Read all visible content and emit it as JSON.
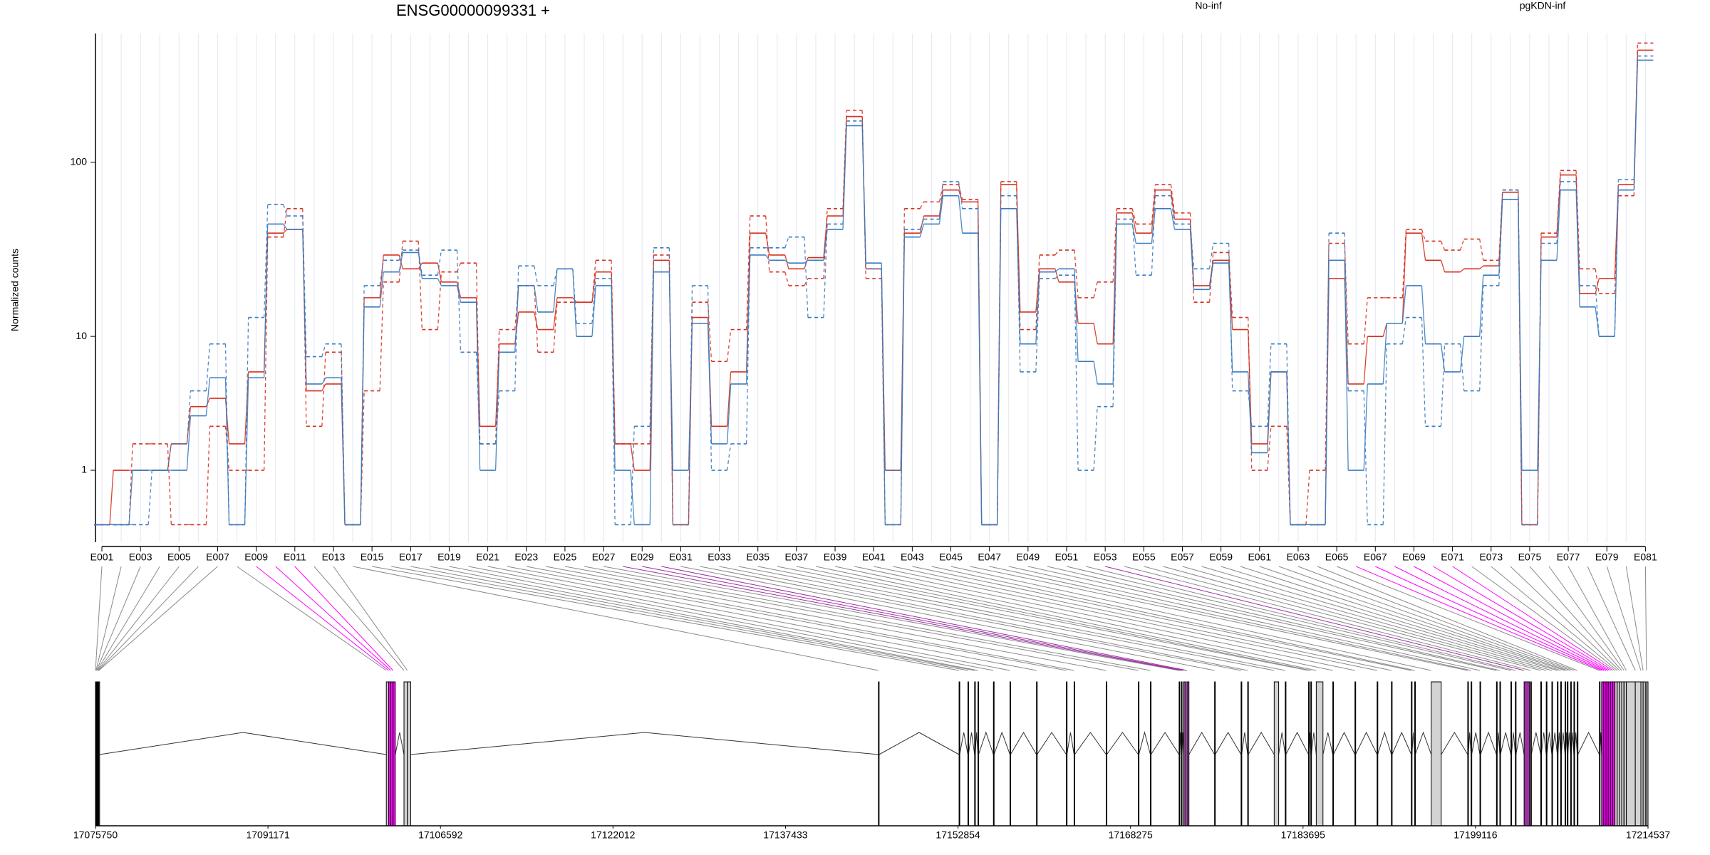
{
  "chart_data": {
    "type": "line",
    "title": "ENSG00000099331 +",
    "y_label": "Normalized counts",
    "yscale": "log1p",
    "ylim": [
      -0.2,
      520
    ],
    "yticks": [
      1,
      10,
      100
    ],
    "grid": true,
    "categories": [
      "E001",
      null,
      "E003",
      null,
      "E005",
      null,
      "E007",
      null,
      "E009",
      null,
      "E011",
      null,
      "E013",
      null,
      "E015",
      null,
      "E017",
      null,
      "E019",
      null,
      "E021",
      null,
      "E023",
      null,
      "E025",
      null,
      "E027",
      null,
      "E029",
      null,
      "E031",
      null,
      "E033",
      null,
      "E035",
      null,
      "E037",
      null,
      "E039",
      null,
      "E041",
      null,
      "E043",
      null,
      "E045",
      null,
      "E047",
      null,
      "E049",
      null,
      "E051",
      null,
      "E053",
      null,
      "E055",
      null,
      "E057",
      null,
      "E059",
      null,
      "E061",
      null,
      "E063",
      null,
      "E065",
      null,
      "E067",
      null,
      "E069",
      null,
      "E071",
      null,
      "E073",
      null,
      "E075",
      null,
      "E077",
      null,
      "E079",
      null,
      "E081"
    ],
    "groups": [
      {
        "name": "No-inf",
        "color": "#d7301f",
        "samples": [
          {
            "dash": false,
            "values": [
              0,
              1,
              1,
              1,
              1.8,
              3.5,
              4,
              1.8,
              6,
              40,
              42,
              4.5,
              5,
              0,
              17,
              30,
              25,
              27,
              21,
              17,
              2.5,
              9,
              14,
              11,
              17,
              16,
              24,
              1.8,
              1,
              28,
              0,
              13,
              2.5,
              6,
              40,
              30,
              25,
              29,
              50,
              180,
              25,
              1,
              40,
              50,
              70,
              60,
              0,
              75,
              14,
              25,
              21,
              12,
              9,
              52,
              40,
              70,
              48,
              20,
              28,
              11,
              1.8,
              6,
              0,
              0,
              22,
              5,
              10,
              12,
              40,
              28,
              24,
              25,
              26,
              68,
              0,
              38,
              85,
              18,
              22,
              75,
              420
            ]
          },
          {
            "dash": true,
            "values": [
              0,
              0,
              1.8,
              1.8,
              0,
              0,
              2.5,
              1,
              1,
              38,
              55,
              2.5,
              8,
              0,
              4.5,
              21,
              36,
              11,
              24,
              27,
              1.8,
              11,
              20,
              8,
              16,
              16,
              28,
              1.8,
              1.8,
              30,
              0,
              16,
              7,
              11,
              50,
              24,
              20,
              22,
              55,
              195,
              22,
              0,
              55,
              60,
              75,
              62,
              0,
              78,
              11,
              30,
              32,
              17,
              21,
              55,
              45,
              75,
              52,
              16,
              31,
              13,
              1,
              2.5,
              0,
              1,
              35,
              9,
              17,
              17,
              42,
              36,
              32,
              37,
              28,
              70,
              0,
              40,
              90,
              25,
              18,
              65,
              460
            ]
          }
        ]
      },
      {
        "name": "pgKDN-inf",
        "color": "#3a7bbf",
        "samples": [
          {
            "dash": false,
            "values": [
              0,
              0,
              1,
              1,
              1,
              3,
              5.5,
              0,
              5.5,
              45,
              42,
              5,
              5.5,
              0,
              15,
              24,
              31,
              22,
              20,
              16,
              1,
              8,
              20,
              14,
              25,
              10,
              20,
              1,
              0,
              24,
              1,
              12,
              1.8,
              5,
              30,
              28,
              27,
              28,
              42,
              160,
              27,
              0,
              38,
              45,
              65,
              40,
              0,
              55,
              9,
              24,
              25,
              7,
              5,
              45,
              35,
              55,
              42,
              19,
              27,
              6,
              1.5,
              6,
              0,
              0,
              28,
              1,
              5,
              12,
              20,
              9,
              6,
              10,
              23,
              62,
              1,
              28,
              70,
              15,
              10,
              70,
              370
            ]
          },
          {
            "dash": true,
            "values": [
              0,
              0,
              0,
              1,
              1.8,
              4.5,
              9,
              0,
              13,
              58,
              50,
              7.5,
              9,
              0,
              20,
              28,
              32,
              23,
              32,
              8,
              1.8,
              4.5,
              26,
              20,
              25,
              12,
              22,
              0,
              2.5,
              33,
              0,
              20,
              1,
              1.8,
              33,
              33,
              38,
              13,
              45,
              170,
              25,
              1,
              42,
              48,
              78,
              55,
              0,
              65,
              6,
              22,
              23,
              1,
              3.5,
              48,
              23,
              65,
              45,
              25,
              35,
              4.5,
              2.5,
              9,
              0,
              0,
              40,
              4.5,
              0,
              9,
              13,
              2.5,
              9,
              4.5,
              20,
              70,
              0,
              35,
              78,
              20,
              10,
              80,
              390
            ]
          }
        ]
      }
    ],
    "gene_model": {
      "xlim": [
        17075750,
        17214537
      ],
      "xticks": [
        17075750,
        17091171,
        17106592,
        17122012,
        17137433,
        17152854,
        17168275,
        17183695,
        17199116,
        17214537
      ],
      "exon_starts": [
        17075750,
        17075800,
        17075850,
        17075900,
        17075950,
        17076000,
        17076050,
        17101750,
        17101950,
        17102150,
        17102350,
        17103330,
        17103630,
        17145740,
        17152950,
        17153740,
        17154340,
        17154640,
        17156020,
        17157500,
        17159870,
        17162540,
        17163230,
        17166100,
        17168970,
        17170050,
        17172620,
        17172820,
        17173020,
        17173320,
        17175790,
        17178160,
        17178750,
        17181120,
        17182110,
        17184190,
        17184390,
        17184880,
        17186360,
        17188340,
        17190320,
        17191600,
        17193380,
        17193680,
        17195160,
        17198420,
        17198720,
        17199510,
        17200990,
        17201290,
        17202280,
        17202680,
        17203460,
        17204050,
        17204950,
        17205440,
        17205940,
        17206430,
        17206730,
        17207120,
        17207320,
        17207620,
        17207910,
        17208210,
        17210190,
        17210390,
        17210580,
        17210780,
        17210980,
        17211180,
        17211380,
        17211580,
        17211780,
        17211980,
        17212180,
        17212400,
        17212600,
        17213400,
        17213900,
        17214100,
        17214400
      ],
      "exon_ends": [
        17075790,
        17075840,
        17075890,
        17075940,
        17075990,
        17076040,
        17076120,
        17101950,
        17102150,
        17102350,
        17102550,
        17103630,
        17103930,
        17145800,
        17153000,
        17153790,
        17154390,
        17154690,
        17156070,
        17157550,
        17159920,
        17162590,
        17163280,
        17166150,
        17169020,
        17170100,
        17172680,
        17172880,
        17173200,
        17173500,
        17175840,
        17178210,
        17178800,
        17181520,
        17182160,
        17184240,
        17184440,
        17185480,
        17186410,
        17188390,
        17190370,
        17191650,
        17193430,
        17193730,
        17196050,
        17198470,
        17198770,
        17199560,
        17201040,
        17201340,
        17202330,
        17202730,
        17203950,
        17204100,
        17205000,
        17205490,
        17205990,
        17206480,
        17206780,
        17207170,
        17207370,
        17207670,
        17207960,
        17208260,
        17210240,
        17210580,
        17210780,
        17210980,
        17211180,
        17211380,
        17211580,
        17211780,
        17211980,
        17212180,
        17212380,
        17212600,
        17213400,
        17213900,
        17214100,
        17214300,
        17214537
      ],
      "exon_colors": [
        "#d3d3d3",
        "#d3d3d3",
        "#d3d3d3",
        "#d3d3d3",
        "#d3d3d3",
        "#d3d3d3",
        "#d3d3d3",
        "#d3d3d3",
        "#ff00ff",
        "#ff00ff",
        "#ff00ff",
        "#d3d3d3",
        "#d3d3d3",
        "#d3d3d3",
        "#d3d3d3",
        "#d3d3d3",
        "#d3d3d3",
        "#d3d3d3",
        "#d3d3d3",
        "#d3d3d3",
        "#d3d3d3",
        "#d3d3d3",
        "#d3d3d3",
        "#d3d3d3",
        "#d3d3d3",
        "#d3d3d3",
        "#d3d3d3",
        "#9b30a0",
        "#9b30a0",
        "#9b30a0",
        "#d3d3d3",
        "#d3d3d3",
        "#d3d3d3",
        "#d3d3d3",
        "#d3d3d3",
        "#d3d3d3",
        "#d3d3d3",
        "#d3d3d3",
        "#d3d3d3",
        "#d3d3d3",
        "#d3d3d3",
        "#d3d3d3",
        "#d3d3d3",
        "#d3d3d3",
        "#d3d3d3",
        "#d3d3d3",
        "#d3d3d3",
        "#d3d3d3",
        "#d3d3d3",
        "#d3d3d3",
        "#d3d3d3",
        "#d3d3d3",
        "#9b30a0",
        "#d3d3d3",
        "#d3d3d3",
        "#d3d3d3",
        "#d3d3d3",
        "#d3d3d3",
        "#d3d3d3",
        "#d3d3d3",
        "#d3d3d3",
        "#d3d3d3",
        "#d3d3d3",
        "#d3d3d3",
        "#d3d3d3",
        "#ff00ff",
        "#ff00ff",
        "#ff00ff",
        "#ff00ff",
        "#ff00ff",
        "#ff00ff",
        "#d3d3d3",
        "#d3d3d3",
        "#d3d3d3",
        "#d3d3d3",
        "#d3d3d3",
        "#d3d3d3",
        "#d3d3d3",
        "#d3d3d3",
        "#d3d3d3",
        "#d3d3d3"
      ]
    }
  }
}
